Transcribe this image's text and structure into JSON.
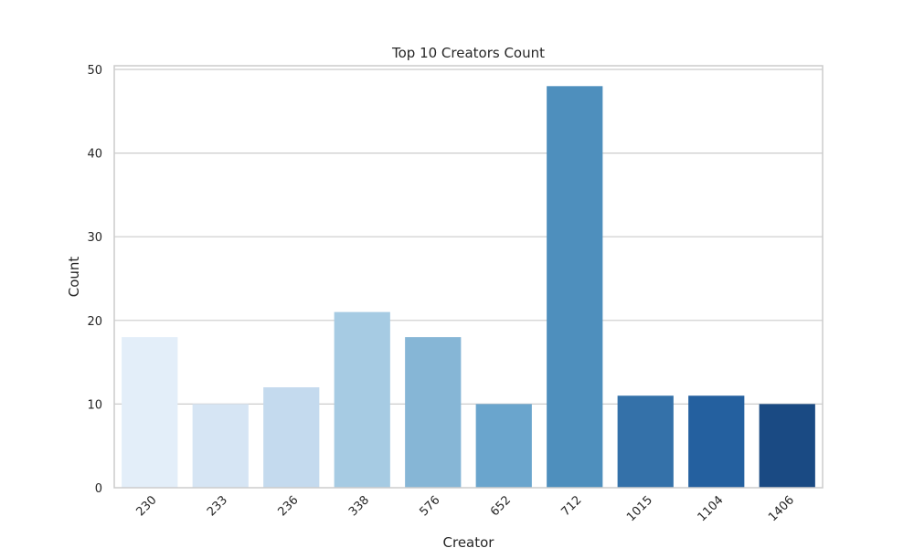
{
  "chart_data": {
    "type": "bar",
    "title": "Top 10 Creators Count",
    "xlabel": "Creator",
    "ylabel": "Count",
    "categories": [
      "230",
      "233",
      "236",
      "338",
      "576",
      "652",
      "712",
      "1015",
      "1104",
      "1406"
    ],
    "values": [
      18,
      10,
      12,
      21,
      18,
      10,
      48,
      11,
      11,
      10
    ],
    "ylim": [
      0,
      50
    ],
    "yticks": [
      "0",
      "10",
      "20",
      "30",
      "40",
      "50"
    ],
    "grid": "y",
    "legend": "none",
    "x_tick_rotation": "45 degrees",
    "colors": [
      "#e3eef9",
      "#d6e5f4",
      "#c4daee",
      "#a6cbe3",
      "#86b6d6",
      "#6aa5cd",
      "#4e8fbd",
      "#3471a9",
      "#24609f",
      "#1a4a83"
    ]
  }
}
